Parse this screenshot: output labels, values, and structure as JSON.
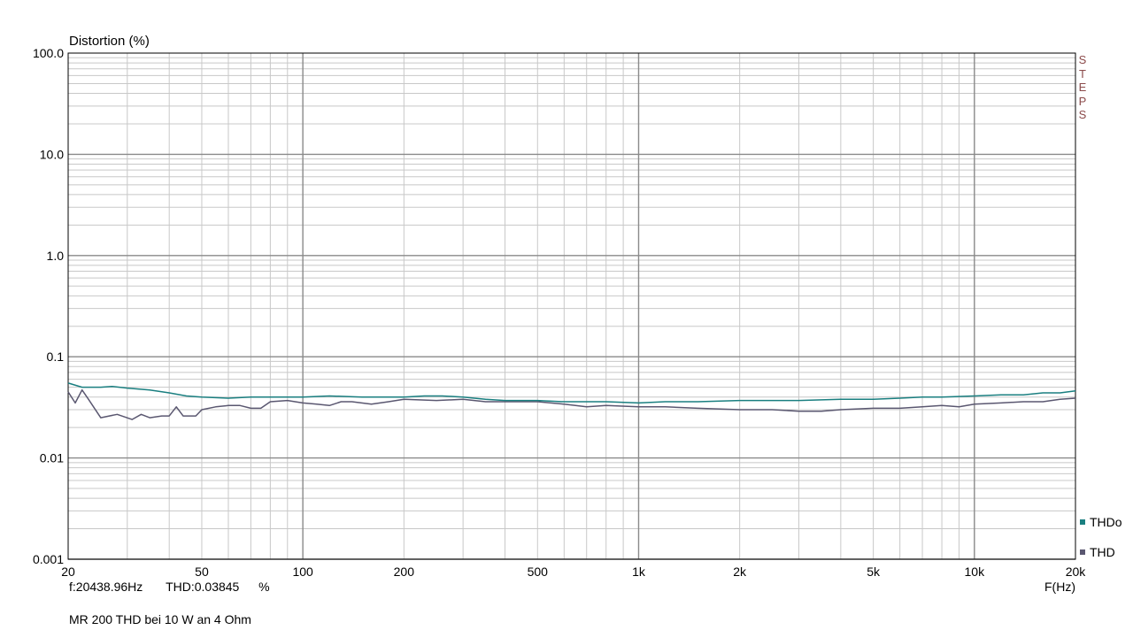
{
  "chart_data": {
    "type": "line",
    "title": "MR 200 THD bei 10 W an 4 Ohm",
    "ylabel": "Distortion (%)",
    "xlabel": "F(Hz)",
    "xscale": "log",
    "yscale": "log",
    "xlim": [
      20,
      20000
    ],
    "ylim": [
      0.001,
      100
    ],
    "x_tick_labels": [
      {
        "v": 20,
        "t": "20"
      },
      {
        "v": 50,
        "t": "50"
      },
      {
        "v": 100,
        "t": "100"
      },
      {
        "v": 200,
        "t": "200"
      },
      {
        "v": 500,
        "t": "500"
      },
      {
        "v": 1000,
        "t": "1k"
      },
      {
        "v": 2000,
        "t": "2k"
      },
      {
        "v": 5000,
        "t": "5k"
      },
      {
        "v": 10000,
        "t": "10k"
      },
      {
        "v": 20000,
        "t": "20k"
      }
    ],
    "y_tick_labels": [
      {
        "v": 100,
        "t": "100.0"
      },
      {
        "v": 10,
        "t": "10.0"
      },
      {
        "v": 1,
        "t": "1.0"
      },
      {
        "v": 0.1,
        "t": "0.1"
      },
      {
        "v": 0.01,
        "t": "0.01"
      },
      {
        "v": 0.001,
        "t": "0.001"
      }
    ],
    "grid": true,
    "legend_position": "bottom-right",
    "series": [
      {
        "name": "THDo",
        "color": "#1a7f80",
        "points": [
          [
            20,
            0.055
          ],
          [
            22,
            0.05
          ],
          [
            25,
            0.05
          ],
          [
            27,
            0.051
          ],
          [
            30,
            0.049
          ],
          [
            35,
            0.047
          ],
          [
            40,
            0.044
          ],
          [
            45,
            0.041
          ],
          [
            50,
            0.04
          ],
          [
            60,
            0.039
          ],
          [
            70,
            0.04
          ],
          [
            80,
            0.04
          ],
          [
            100,
            0.04
          ],
          [
            120,
            0.041
          ],
          [
            150,
            0.04
          ],
          [
            200,
            0.04
          ],
          [
            230,
            0.041
          ],
          [
            260,
            0.041
          ],
          [
            300,
            0.04
          ],
          [
            350,
            0.038
          ],
          [
            400,
            0.037
          ],
          [
            500,
            0.037
          ],
          [
            600,
            0.036
          ],
          [
            700,
            0.036
          ],
          [
            800,
            0.036
          ],
          [
            1000,
            0.035
          ],
          [
            1200,
            0.036
          ],
          [
            1500,
            0.036
          ],
          [
            2000,
            0.037
          ],
          [
            3000,
            0.037
          ],
          [
            4000,
            0.038
          ],
          [
            5000,
            0.038
          ],
          [
            6000,
            0.039
          ],
          [
            7000,
            0.04
          ],
          [
            8000,
            0.04
          ],
          [
            10000,
            0.041
          ],
          [
            12000,
            0.042
          ],
          [
            14000,
            0.042
          ],
          [
            16000,
            0.044
          ],
          [
            18000,
            0.044
          ],
          [
            20000,
            0.046
          ]
        ]
      },
      {
        "name": "THD",
        "color": "#5a5770",
        "points": [
          [
            20,
            0.045
          ],
          [
            21,
            0.035
          ],
          [
            22,
            0.047
          ],
          [
            23,
            0.038
          ],
          [
            25,
            0.025
          ],
          [
            28,
            0.027
          ],
          [
            31,
            0.024
          ],
          [
            33,
            0.027
          ],
          [
            35,
            0.025
          ],
          [
            38,
            0.026
          ],
          [
            40,
            0.026
          ],
          [
            42,
            0.032
          ],
          [
            44,
            0.026
          ],
          [
            48,
            0.026
          ],
          [
            50,
            0.03
          ],
          [
            55,
            0.032
          ],
          [
            60,
            0.033
          ],
          [
            65,
            0.033
          ],
          [
            70,
            0.031
          ],
          [
            75,
            0.031
          ],
          [
            80,
            0.036
          ],
          [
            90,
            0.037
          ],
          [
            100,
            0.035
          ],
          [
            110,
            0.034
          ],
          [
            120,
            0.033
          ],
          [
            130,
            0.036
          ],
          [
            140,
            0.036
          ],
          [
            160,
            0.034
          ],
          [
            180,
            0.036
          ],
          [
            200,
            0.038
          ],
          [
            250,
            0.037
          ],
          [
            300,
            0.038
          ],
          [
            350,
            0.036
          ],
          [
            400,
            0.036
          ],
          [
            500,
            0.036
          ],
          [
            600,
            0.034
          ],
          [
            700,
            0.032
          ],
          [
            800,
            0.033
          ],
          [
            1000,
            0.032
          ],
          [
            1200,
            0.032
          ],
          [
            1500,
            0.031
          ],
          [
            2000,
            0.03
          ],
          [
            2500,
            0.03
          ],
          [
            3000,
            0.029
          ],
          [
            3500,
            0.029
          ],
          [
            4000,
            0.03
          ],
          [
            5000,
            0.031
          ],
          [
            6000,
            0.031
          ],
          [
            7000,
            0.032
          ],
          [
            8000,
            0.033
          ],
          [
            9000,
            0.032
          ],
          [
            10000,
            0.034
          ],
          [
            12000,
            0.035
          ],
          [
            14000,
            0.036
          ],
          [
            16000,
            0.036
          ],
          [
            18000,
            0.038
          ],
          [
            20000,
            0.039
          ]
        ]
      }
    ]
  },
  "side_label": "STEPS",
  "legend": [
    {
      "name": "THDo",
      "color": "#1a7f80"
    },
    {
      "name": "THD",
      "color": "#5a5770"
    }
  ],
  "cursor": {
    "freq": "f:20438.96Hz",
    "thd": "THD:0.03845",
    "unit": "%"
  }
}
